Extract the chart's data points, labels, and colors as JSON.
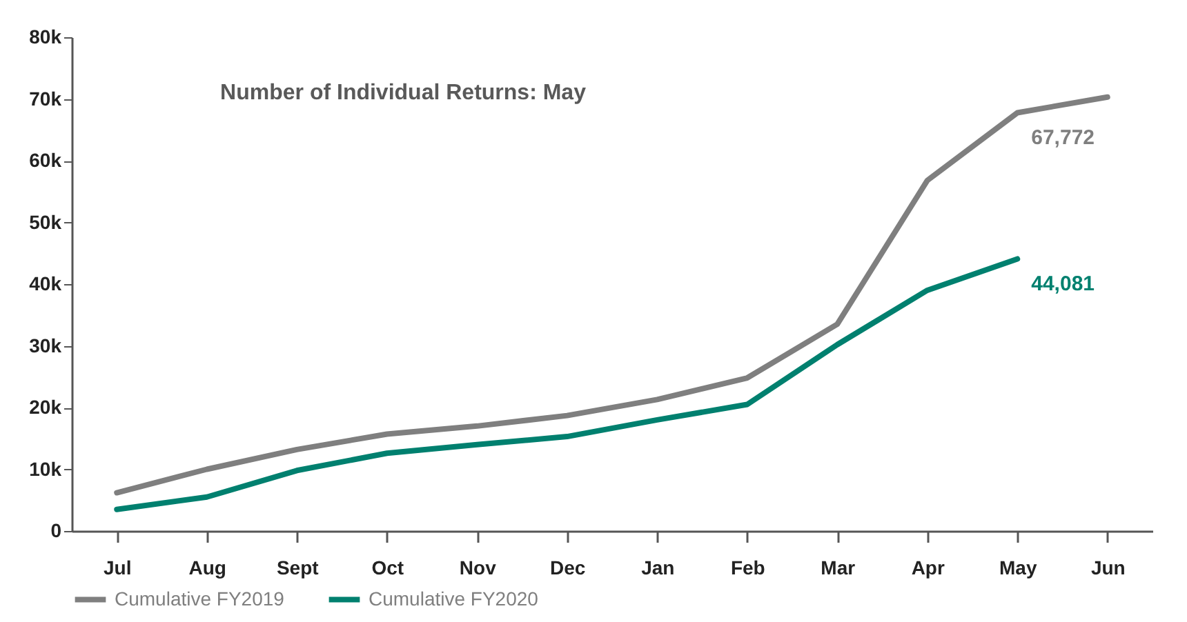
{
  "chart_data": {
    "type": "line",
    "title": "Number of Individual Returns: May",
    "categories": [
      "Jul",
      "Aug",
      "Sept",
      "Oct",
      "Nov",
      "Dec",
      "Jan",
      "Feb",
      "Mar",
      "Apr",
      "May",
      "Jun"
    ],
    "series": [
      {
        "name": "Cumulative  FY2019",
        "color": "#7f7f7f",
        "values": [
          6200,
          10000,
          13200,
          15700,
          17000,
          18700,
          21300,
          24800,
          33500,
          56800,
          67772,
          70300
        ],
        "value_labels": [
          null,
          null,
          null,
          null,
          null,
          null,
          null,
          null,
          null,
          null,
          "67,772",
          null
        ]
      },
      {
        "name": "Cumulative  FY2020",
        "color": "#00806f",
        "values": [
          3500,
          5500,
          9800,
          12600,
          14000,
          15300,
          18000,
          20500,
          30200,
          39000,
          44081,
          null
        ],
        "value_labels": [
          null,
          null,
          null,
          null,
          null,
          null,
          null,
          null,
          null,
          null,
          "44,081",
          null
        ]
      }
    ],
    "ylim": [
      0,
      80000
    ],
    "yticks": [
      {
        "value": 0,
        "label": "0"
      },
      {
        "value": 10000,
        "label": "10k"
      },
      {
        "value": 20000,
        "label": "20k"
      },
      {
        "value": 30000,
        "label": "30k"
      },
      {
        "value": 40000,
        "label": "40k"
      },
      {
        "value": 50000,
        "label": "50k"
      },
      {
        "value": 60000,
        "label": "60k"
      },
      {
        "value": 70000,
        "label": "70k"
      },
      {
        "value": 80000,
        "label": "80k"
      }
    ],
    "legend": "bottom",
    "grid": false,
    "marker": "none",
    "line_style": "solid"
  }
}
